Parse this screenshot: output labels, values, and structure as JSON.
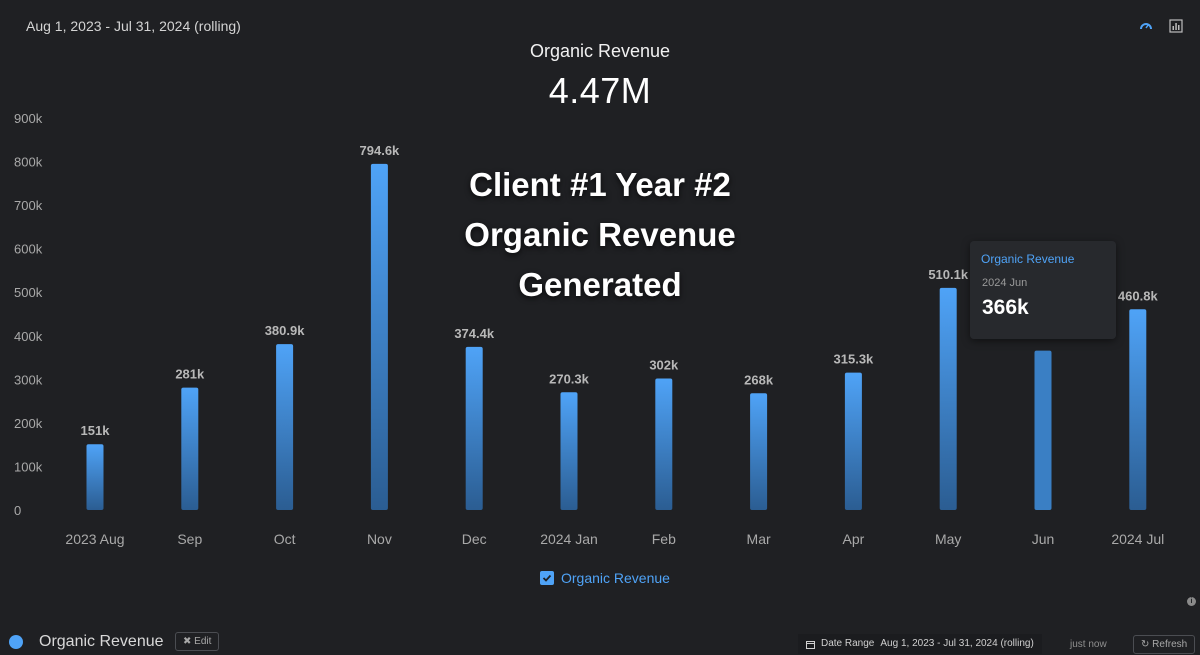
{
  "header": {
    "date_range": "Aug 1, 2023 - Jul 31, 2024 (rolling)",
    "icons": [
      "gauge-icon",
      "chart-icon"
    ]
  },
  "kpi": {
    "title": "Organic Revenue",
    "value": "4.47M"
  },
  "overlay": {
    "lines": [
      "Client #1 Year #2",
      "Organic Revenue",
      "Generated"
    ]
  },
  "chart_data": {
    "type": "bar",
    "categories": [
      "2023 Aug",
      "Sep",
      "Oct",
      "Nov",
      "Dec",
      "2024 Jan",
      "Feb",
      "Mar",
      "Apr",
      "May",
      "Jun",
      "2024 Jul"
    ],
    "series": [
      {
        "name": "Organic Revenue",
        "values": [
          151000,
          281000,
          380900,
          794600,
          374400,
          270300,
          302000,
          268000,
          315300,
          510100,
          366000,
          460800
        ],
        "labels": [
          "151k",
          "281k",
          "380.9k",
          "794.6k",
          "374.4k",
          "270.3k",
          "302k",
          "268k",
          "315.3k",
          "510.1k",
          "",
          "460.8k"
        ]
      }
    ],
    "y_ticks": [
      "0",
      "100k",
      "200k",
      "300k",
      "400k",
      "500k",
      "600k",
      "700k",
      "800k",
      "900k"
    ],
    "ylim": [
      0,
      900000
    ],
    "grid": false,
    "legend": "bottom-center",
    "colors": {
      "bar_top": "#4fa3f7",
      "bar_bottom": "#2b5d92",
      "hover_bar": "#3a7fc4"
    }
  },
  "tooltip": {
    "series": "Organic Revenue",
    "date": "2024 Jun",
    "value": "366k"
  },
  "legend": {
    "label": "Organic Revenue"
  },
  "footer": {
    "title": "Organic Revenue",
    "edit_label": "Edit",
    "date_range_label": "Date Range",
    "date_range_value": "Aug 1, 2023 - Jul 31, 2024 (rolling)",
    "updated": "just now",
    "refresh_label": "Refresh"
  }
}
